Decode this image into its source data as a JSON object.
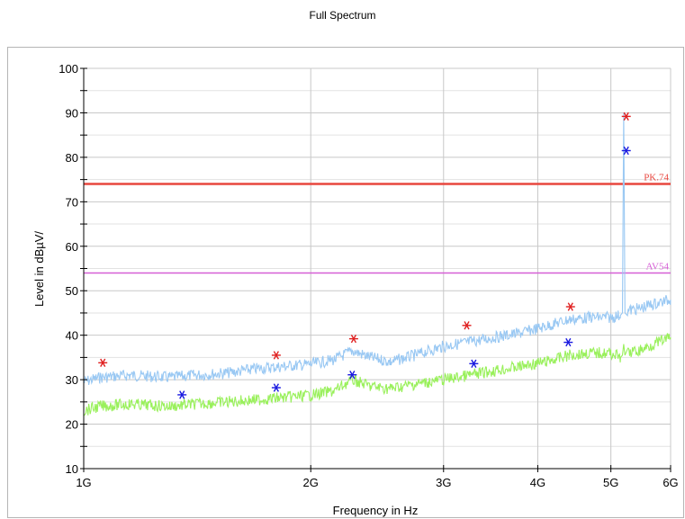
{
  "chart_data": {
    "type": "line",
    "title": "Full Spectrum",
    "xlabel": "Frequency in Hz",
    "ylabel": "Level in dBµV/",
    "x_scale": "log",
    "xlim_hz": [
      1000000000,
      6000000000
    ],
    "ylim": [
      10,
      100
    ],
    "grid": true,
    "x_ticks": [
      {
        "value": 1000000000,
        "label": "1G"
      },
      {
        "value": 2000000000,
        "label": "2G"
      },
      {
        "value": 3000000000,
        "label": "3G"
      },
      {
        "value": 4000000000,
        "label": "4G"
      },
      {
        "value": 5000000000,
        "label": "5G"
      },
      {
        "value": 6000000000,
        "label": "6G"
      }
    ],
    "y_ticks": [
      10,
      20,
      30,
      40,
      50,
      60,
      70,
      80,
      90,
      100
    ],
    "limit_lines": [
      {
        "label": "PK.74",
        "value": 74,
        "color": "#e8473f"
      },
      {
        "label": "AV54",
        "value": 54,
        "color": "#d65fd6"
      }
    ],
    "series": [
      {
        "color": "#99c8f3",
        "x": [
          1000000000,
          1050000000,
          1150000000,
          1300000000,
          1400000000,
          1550000000,
          1700000000,
          1850000000,
          2000000000,
          2150000000,
          2270000000,
          2400000000,
          2550000000,
          2750000000,
          3000000000,
          3250000000,
          3500000000,
          3800000000,
          4100000000,
          4400000000,
          4700000000,
          5000000000,
          5150000000,
          5180000000,
          5200000000,
          5220000000,
          5260000000,
          5450000000,
          5700000000,
          6000000000
        ],
        "values": [
          29.5,
          30.5,
          31,
          30.5,
          31,
          31.5,
          32.5,
          33,
          33.5,
          34.5,
          36.5,
          35,
          34,
          35.5,
          37.5,
          38.5,
          39.5,
          40.5,
          42,
          43.5,
          44,
          44,
          44.5,
          45,
          90,
          45,
          45.5,
          46,
          47,
          48
        ]
      },
      {
        "color": "#99f05b",
        "x": [
          1000000000,
          1050000000,
          1150000000,
          1300000000,
          1400000000,
          1550000000,
          1700000000,
          1850000000,
          2000000000,
          2150000000,
          2270000000,
          2400000000,
          2550000000,
          2750000000,
          3000000000,
          3250000000,
          3500000000,
          3800000000,
          4100000000,
          4400000000,
          4700000000,
          5000000000,
          5150000000,
          5180000000,
          5200000000,
          5220000000,
          5260000000,
          5450000000,
          5700000000,
          6000000000
        ],
        "values": [
          23,
          24,
          24.5,
          24,
          24.5,
          25,
          25.5,
          26,
          26.5,
          27.5,
          30,
          28.5,
          28,
          29,
          30,
          31,
          32,
          33,
          34,
          35.5,
          36,
          36,
          35,
          35.5,
          38,
          35.5,
          36,
          36.5,
          38,
          39.5
        ]
      }
    ],
    "markers": [
      {
        "color": "#e02020",
        "points": [
          {
            "x": 1060000000,
            "y": 33.8
          },
          {
            "x": 1800000000,
            "y": 35.5
          },
          {
            "x": 2280000000,
            "y": 39.2
          },
          {
            "x": 3220000000,
            "y": 42.2
          },
          {
            "x": 4420000000,
            "y": 46.4
          },
          {
            "x": 5240000000,
            "y": 89.2
          }
        ]
      },
      {
        "color": "#1a1ae0",
        "points": [
          {
            "x": 1350000000,
            "y": 26.6
          },
          {
            "x": 1800000000,
            "y": 28.2
          },
          {
            "x": 2270000000,
            "y": 31.1
          },
          {
            "x": 3290000000,
            "y": 33.6
          },
          {
            "x": 4390000000,
            "y": 38.4
          },
          {
            "x": 5240000000,
            "y": 81.5
          }
        ]
      }
    ]
  }
}
